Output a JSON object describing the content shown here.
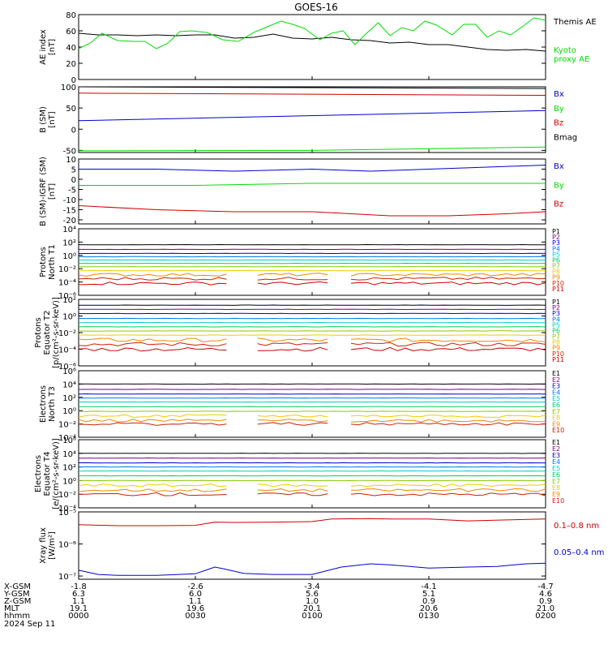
{
  "title": "GOES-16",
  "colors": {
    "black": "#000000",
    "green": "#00dd00",
    "blue": "#0000cc",
    "red": "#cc0000",
    "p_ramp": [
      "#000000",
      "#7a007a",
      "#0000cc",
      "#0077ee",
      "#00cccc",
      "#00cc66",
      "#88cc00",
      "#eecc00",
      "#ee8800",
      "#cc2200",
      "#cc0000"
    ],
    "e_ramp": [
      "#000000",
      "#7a007a",
      "#0000cc",
      "#0077ee",
      "#00cccc",
      "#00cc66",
      "#88cc00",
      "#eecc00",
      "#ee8800",
      "#cc2200"
    ]
  },
  "chart_data": [
    {
      "type": "line",
      "id": "ae",
      "ylabel": "AE index\n[nT]",
      "ylim": [
        0,
        80
      ],
      "yticks": [
        "0",
        "20",
        "40",
        "60",
        "80"
      ],
      "ytick_values": [
        0,
        20,
        40,
        60,
        80
      ],
      "series": [
        {
          "name": "Themis AE",
          "color_key": "black",
          "x": [
            0,
            10,
            20,
            30,
            40,
            50,
            60,
            70,
            80,
            90,
            100,
            110,
            120,
            130,
            140,
            150,
            160,
            170,
            180,
            190,
            200,
            210,
            220,
            230,
            240
          ],
          "y": [
            57,
            55,
            55,
            54,
            55,
            54,
            55,
            55,
            51,
            52,
            56,
            51,
            50,
            52,
            49,
            48,
            45,
            46,
            43,
            43,
            40,
            37,
            36,
            37,
            35
          ]
        },
        {
          "name": "Kyoto\nproxy AE",
          "color_key": "green",
          "x": [
            0,
            6,
            12,
            20,
            28,
            34,
            40,
            46,
            52,
            58,
            66,
            74,
            82,
            90,
            98,
            104,
            110,
            116,
            124,
            130,
            136,
            142,
            148,
            154,
            160,
            166,
            172,
            178,
            184,
            192,
            198,
            204,
            210,
            216,
            222,
            228,
            234,
            240
          ],
          "y": [
            38,
            45,
            57,
            48,
            47,
            47,
            38,
            45,
            59,
            60,
            58,
            49,
            47,
            58,
            66,
            72,
            68,
            63,
            49,
            57,
            60,
            43,
            57,
            70,
            54,
            64,
            60,
            72,
            67,
            55,
            68,
            68,
            52,
            60,
            55,
            65,
            76,
            73
          ]
        }
      ]
    },
    {
      "type": "line",
      "id": "bsm",
      "ylabel": "B (SM)\n[nT]",
      "ylim": [
        -55,
        100
      ],
      "yticks": [
        "-50",
        "0",
        "50",
        "100"
      ],
      "ytick_values": [
        -50,
        0,
        50,
        100
      ],
      "series": [
        {
          "name": "Bx",
          "color_key": "blue",
          "x": [
            0,
            240
          ],
          "y": [
            20,
            44
          ]
        },
        {
          "name": "By",
          "color_key": "green",
          "x": [
            0,
            120,
            240
          ],
          "y": [
            -51,
            -50,
            -42
          ]
        },
        {
          "name": "Bz",
          "color_key": "red",
          "x": [
            0,
            240
          ],
          "y": [
            85,
            80
          ]
        },
        {
          "name": "Bmag",
          "color_key": "black",
          "x": [
            0,
            240
          ],
          "y": [
            100,
            96
          ]
        }
      ]
    },
    {
      "type": "line",
      "id": "bigrf",
      "ylabel": "B (SM)-IGRF (SM)\n[nT]",
      "ylim": [
        -22,
        10
      ],
      "yticks": [
        "-20",
        "-15",
        "-10",
        "-5",
        "0",
        "5",
        "10"
      ],
      "ytick_values": [
        -20,
        -15,
        -10,
        -5,
        0,
        5,
        10
      ],
      "series": [
        {
          "name": "Bx",
          "color_key": "blue",
          "x": [
            0,
            40,
            80,
            120,
            150,
            180,
            210,
            240
          ],
          "y": [
            5,
            5,
            4,
            5,
            4,
            5,
            6,
            7
          ]
        },
        {
          "name": "By",
          "color_key": "green",
          "x": [
            0,
            60,
            120,
            180,
            240
          ],
          "y": [
            -3,
            -3,
            -2,
            -2,
            -2
          ]
        },
        {
          "name": "Bz",
          "color_key": "red",
          "x": [
            0,
            40,
            80,
            120,
            160,
            190,
            220,
            240
          ],
          "y": [
            -13,
            -15,
            -16,
            -16,
            -18,
            -18,
            -17,
            -16
          ]
        }
      ]
    },
    {
      "type": "line",
      "id": "pn1",
      "log": true,
      "ylabel": "Protons\nNorth T1",
      "ylim": [
        -6,
        4
      ],
      "yticks": [
        "10⁴",
        "10²",
        "10⁰",
        "10⁻²",
        "10⁻⁴",
        "10⁻⁶"
      ],
      "ytick_values": [
        4,
        2,
        0,
        -2,
        -4,
        -6
      ],
      "channels": [
        "P1",
        "P2",
        "P3",
        "P4",
        "P5",
        "P6",
        "P7",
        "P8",
        "P9",
        "P10",
        "P11"
      ],
      "levels": [
        1.6,
        0.9,
        0.3,
        -0.2,
        -0.7,
        -1.2,
        -1.7,
        -2.3,
        -2.9,
        -3.5,
        -4.2
      ]
    },
    {
      "type": "line",
      "id": "pe2",
      "log": true,
      "ylabel": "Protons\nEquator T2\n[p/(cm²-s-sr-keV)]",
      "ylim": [
        -6,
        2
      ],
      "yticks": [
        "10²",
        "10⁰",
        "10⁻²",
        "10⁻⁴",
        "10⁻⁶"
      ],
      "ytick_values": [
        2,
        0,
        -2,
        -4,
        -6
      ],
      "channels": [
        "P1",
        "P2",
        "P3",
        "P4",
        "P5",
        "P6",
        "P7",
        "P8",
        "P9",
        "P10",
        "P11"
      ],
      "levels": [
        1.3,
        0.8,
        0.3,
        -0.3,
        -0.8,
        -1.3,
        -1.8,
        -2.3,
        -2.9,
        -3.4,
        -4.0
      ]
    },
    {
      "type": "line",
      "id": "en3",
      "log": true,
      "ylabel": "Electrons\nNorth T3",
      "ylim": [
        -4,
        6
      ],
      "yticks": [
        "10⁶",
        "10⁴",
        "10²",
        "10⁰",
        "10⁻²",
        "10⁻⁴"
      ],
      "ytick_values": [
        6,
        4,
        2,
        0,
        -2,
        -4
      ],
      "channels": [
        "E1",
        "E2",
        "E3",
        "E4",
        "E5",
        "E6",
        "E7",
        "E8",
        "E9",
        "E10"
      ],
      "levels": [
        4.0,
        3.2,
        2.5,
        1.9,
        1.3,
        0.6,
        -0.1,
        -0.8,
        -1.5,
        -2.0
      ]
    },
    {
      "type": "line",
      "id": "ee4",
      "log": true,
      "ylabel": "Electrons\nEquator T4\n[e/(cm²-s-sr-keV)]",
      "ylim": [
        -4,
        6
      ],
      "yticks": [
        "10⁶",
        "10⁴",
        "10²",
        "10⁰",
        "10⁻²",
        "10⁻⁴"
      ],
      "ytick_values": [
        6,
        4,
        2,
        0,
        -2,
        -4
      ],
      "channels": [
        "E1",
        "E2",
        "E3",
        "E4",
        "E5",
        "E6",
        "E7",
        "E8",
        "E9",
        "E10"
      ],
      "levels": [
        4.0,
        3.3,
        2.6,
        2.0,
        1.4,
        0.7,
        0.0,
        -0.7,
        -1.4,
        -2.0
      ]
    },
    {
      "type": "line",
      "id": "xray",
      "log": true,
      "ylabel": "Xray flux\n[W/m²]",
      "ylim": [
        -7.1,
        -5
      ],
      "yticks": [
        "10⁻⁵",
        "10⁻⁶",
        "10⁻⁷"
      ],
      "ytick_values": [
        -5,
        -6,
        -7
      ],
      "series": [
        {
          "name": "0.1–0.8 nm",
          "color_key": "red",
          "x": [
            0,
            20,
            40,
            60,
            70,
            80,
            100,
            120,
            130,
            150,
            160,
            180,
            200,
            220,
            240
          ],
          "y": [
            -5.4,
            -5.43,
            -5.43,
            -5.42,
            -5.32,
            -5.33,
            -5.32,
            -5.3,
            -5.22,
            -5.21,
            -5.22,
            -5.22,
            -5.28,
            -5.25,
            -5.22
          ]
        },
        {
          "name": "0.05–0.4 nm",
          "color_key": "blue",
          "x": [
            0,
            10,
            20,
            40,
            60,
            70,
            75,
            85,
            100,
            120,
            135,
            150,
            160,
            180,
            200,
            215,
            230,
            240
          ],
          "y": [
            -6.82,
            -6.95,
            -6.98,
            -6.98,
            -6.93,
            -6.72,
            -6.78,
            -6.92,
            -6.95,
            -6.95,
            -6.72,
            -6.62,
            -6.65,
            -6.75,
            -6.72,
            -6.7,
            -6.62,
            -6.6
          ]
        }
      ]
    }
  ],
  "footer": {
    "row_labels": [
      "X-GSM",
      "Y-GSM",
      "Z-GSM",
      "MLT",
      "hhmm",
      "2024 Sep 11"
    ],
    "columns": [
      {
        "x": "-1.8",
        "y": "6.3",
        "z": "1.1",
        "mlt": "19.1",
        "hhmm": "0000"
      },
      {
        "x": "-2.6",
        "y": "6.0",
        "z": "1.1",
        "mlt": "19.6",
        "hhmm": "0030"
      },
      {
        "x": "-3.4",
        "y": "5.6",
        "z": "1.0",
        "mlt": "20.1",
        "hhmm": "0100"
      },
      {
        "x": "-4.1",
        "y": "5.1",
        "z": "0.9",
        "mlt": "20.6",
        "hhmm": "0130"
      },
      {
        "x": "-4.7",
        "y": "4.6",
        "z": "0.9",
        "mlt": "21.0",
        "hhmm": "0200"
      }
    ]
  }
}
